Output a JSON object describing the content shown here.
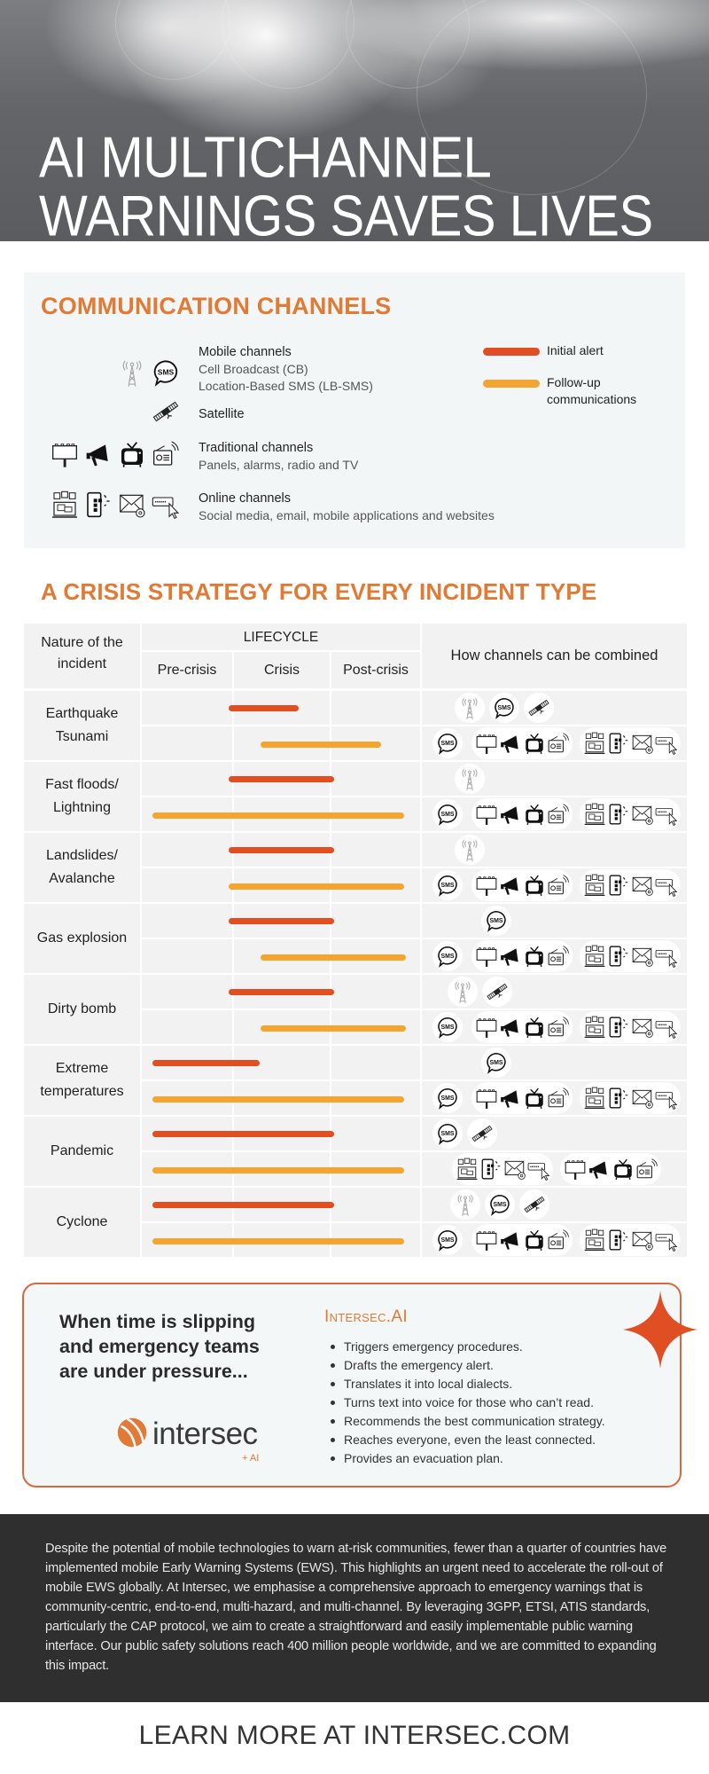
{
  "hero": {
    "title_line1": "AI MULTICHANNEL",
    "title_line2": "WARNINGS SAVES LIVES"
  },
  "channels": {
    "heading": "COMMUNICATION CHANNELS",
    "items": [
      {
        "title": "Mobile channels",
        "lines": [
          "Cell Broadcast (CB)",
          "Location-Based SMS (LB-SMS)"
        ],
        "icons": [
          "cell-tower",
          "sms"
        ]
      },
      {
        "title": "Satellite",
        "lines": [],
        "icons": [
          "satellite"
        ]
      },
      {
        "title": "Traditional channels",
        "lines": [
          "Panels, alarms, radio and TV"
        ],
        "icons": [
          "billboard",
          "megaphone",
          "tv",
          "radio"
        ]
      },
      {
        "title": "Online channels",
        "lines": [
          "Social media, email, mobile applications and websites"
        ],
        "icons": [
          "social-media",
          "mobile-app",
          "email",
          "website"
        ]
      }
    ],
    "legend": [
      {
        "label": "Initial alert",
        "color": "#e04e24"
      },
      {
        "label": "Follow-up communications",
        "color": "#f2a530"
      }
    ]
  },
  "strategy": {
    "heading": "A CRISIS STRATEGY FOR EVERY INCIDENT TYPE",
    "headers": {
      "nature": "Nature of the\nincident",
      "lifecycle": "LIFECYCLE",
      "phases": [
        "Pre-crisis",
        "Crisis",
        "Post-crisis"
      ],
      "combined": "How channels can be combined"
    },
    "lifecycle_span_note": "bar spans in lifecycle phases: 0-1 Pre-crisis, 1-2 Crisis, 2-3 Post-crisis",
    "incidents": [
      {
        "name": "Earthquake\nTsunami",
        "initial": {
          "span": [
            0.95,
            1.67
          ],
          "channels": [
            "cell-broadcast",
            "sms",
            "satellite"
          ]
        },
        "follow_up": {
          "span": [
            1.28,
            2.56
          ],
          "channels": [
            "sms",
            "traditional",
            "online"
          ]
        }
      },
      {
        "name": "Fast floods/\nLightning",
        "initial": {
          "span": [
            0.95,
            2.04
          ],
          "channels": [
            "cell-broadcast"
          ]
        },
        "follow_up": {
          "span": [
            0.12,
            2.81
          ],
          "channels": [
            "sms",
            "traditional",
            "online"
          ]
        }
      },
      {
        "name": "Landslides/\nAvalanche",
        "initial": {
          "span": [
            0.95,
            2.04
          ],
          "channels": [
            "cell-broadcast"
          ]
        },
        "follow_up": {
          "span": [
            0.95,
            2.81
          ],
          "channels": [
            "sms",
            "traditional",
            "online"
          ]
        }
      },
      {
        "name": "Gas explosion",
        "initial": {
          "span": [
            0.95,
            2.04
          ],
          "channels": [
            "sms"
          ]
        },
        "follow_up": {
          "span": [
            1.28,
            2.83
          ],
          "channels": [
            "sms",
            "traditional",
            "online"
          ]
        }
      },
      {
        "name": "Dirty bomb",
        "initial": {
          "span": [
            0.95,
            2.04
          ],
          "channels": [
            "cell-broadcast",
            "satellite"
          ]
        },
        "follow_up": {
          "span": [
            1.28,
            2.83
          ],
          "channels": [
            "sms",
            "traditional",
            "online"
          ]
        }
      },
      {
        "name": "Extreme\ntemperatures",
        "initial": {
          "span": [
            0.12,
            1.27
          ],
          "channels": [
            "sms"
          ]
        },
        "follow_up": {
          "span": [
            0.12,
            2.81
          ],
          "channels": [
            "sms",
            "traditional",
            "online"
          ]
        }
      },
      {
        "name": "Pandemic",
        "initial": {
          "span": [
            0.12,
            2.04
          ],
          "channels": [
            "sms",
            "satellite"
          ]
        },
        "follow_up": {
          "span": [
            0.12,
            2.81
          ],
          "channels": [
            "online",
            "traditional"
          ]
        }
      },
      {
        "name": "Cyclone",
        "initial": {
          "span": [
            0.12,
            2.04
          ],
          "channels": [
            "cell-broadcast",
            "sms",
            "satellite"
          ]
        },
        "follow_up": {
          "span": [
            0.12,
            2.81
          ],
          "channels": [
            "sms",
            "traditional",
            "online"
          ]
        }
      }
    ]
  },
  "ai_box": {
    "headline": "When time is slipping and emergency teams are under pressure...",
    "brand": "Intersec.AI",
    "bullets": [
      "Triggers emergency procedures.",
      "Drafts the emergency alert.",
      "Translates it into local dialects.",
      "Turns text into voice for those who can’t read.",
      "Recommends the best communication strategy.",
      "Reaches everyone, even the least connected.",
      "Provides an evacuation plan."
    ],
    "logo": {
      "word": "intersec",
      "suffix": "+ AI"
    },
    "accent": "#e04e24"
  },
  "about": {
    "text": "Despite the potential of mobile technologies to warn at-risk communities, fewer than a quarter of countries have implemented mobile Early Warning Systems (EWS). This highlights an urgent need to accelerate the roll-out of mobile EWS globally. At Intersec, we emphasise a comprehensive approach to emergency warnings that is community-centric, end-to-end, multi-hazard, and multi-channel. By leveraging 3GPP, ETSI, ATIS standards, particularly the CAP protocol, we aim to create a straightforward and easily implementable public warning interface. Our public safety solutions reach 400 million people worldwide, and we are committed to expanding this impact."
  },
  "cta": {
    "label": "LEARN MORE AT INTERSEC.COM"
  }
}
